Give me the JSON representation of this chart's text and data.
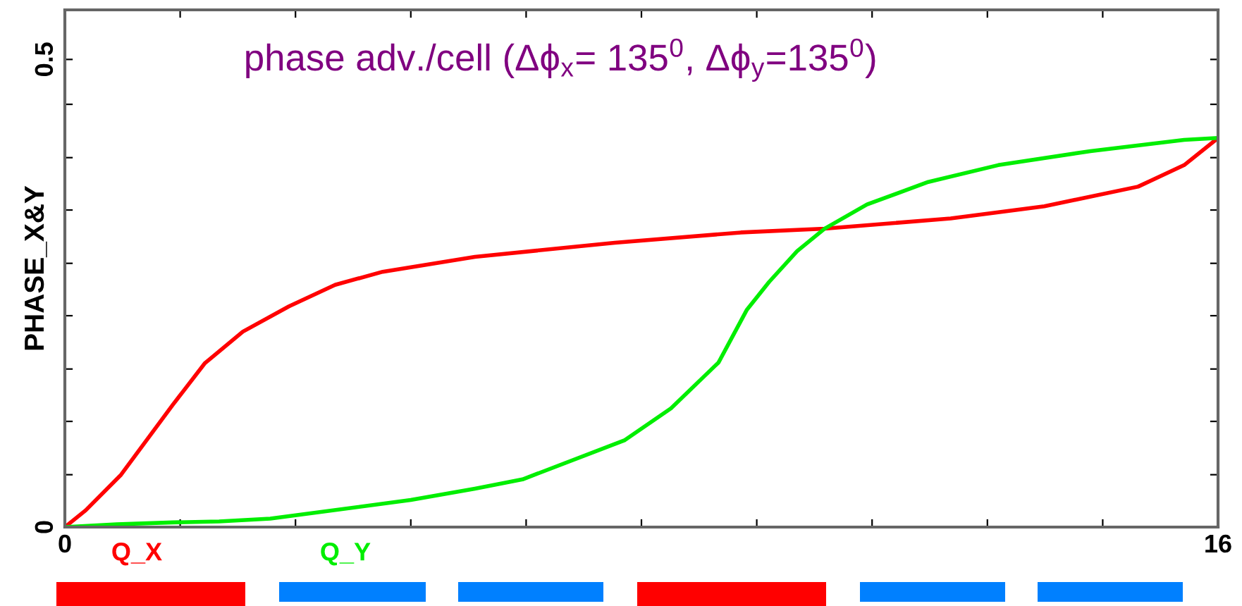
{
  "chart_data": {
    "type": "line",
    "title": "phase adv./cell (Δϕ$_{x}$= 135$^{0}$, Δϕ$_{y}$=135$^{0}$)",
    "ylabel": "PHASE_X&Y",
    "xlim": [
      0,
      16
    ],
    "ylim": [
      0,
      0.553
    ],
    "xticks": [
      0,
      {
        "value": 1.6,
        "label": null
      },
      {
        "value": 3.2,
        "label": null
      },
      {
        "value": 4.8,
        "label": null
      },
      {
        "value": 6.4,
        "label": null
      },
      {
        "value": 8,
        "label": null
      },
      {
        "value": 9.6,
        "label": null
      },
      {
        "value": 11.2,
        "label": null
      },
      {
        "value": 12.8,
        "label": null
      },
      {
        "value": 14.4,
        "label": null
      },
      16
    ],
    "yticks": [
      0,
      {
        "value": 0.056,
        "label": null
      },
      {
        "value": 0.113,
        "label": null
      },
      {
        "value": 0.169,
        "label": null
      },
      {
        "value": 0.226,
        "label": null
      },
      {
        "value": 0.282,
        "label": null
      },
      {
        "value": 0.339,
        "label": null
      },
      {
        "value": 0.395,
        "label": null
      },
      {
        "value": 0.452,
        "label": null
      },
      0.5
    ],
    "grid": false,
    "legend": false,
    "series": [
      {
        "name": "Q_X",
        "color": "#ff0000",
        "x": [
          0,
          0.29,
          0.78,
          1.5,
          1.94,
          2.47,
          3.11,
          3.75,
          4.41,
          5.69,
          7.63,
          9.38,
          10.54,
          12.29,
          13.59,
          14.89,
          15.53,
          16
        ],
        "values": [
          0,
          0.018,
          0.056,
          0.131,
          0.175,
          0.209,
          0.236,
          0.259,
          0.273,
          0.289,
          0.304,
          0.315,
          0.319,
          0.33,
          0.343,
          0.364,
          0.387,
          0.416
        ]
      },
      {
        "name": "Q_Y",
        "color": "#00ee00",
        "x": [
          0,
          0.72,
          1.5,
          2.14,
          2.85,
          4.8,
          5.69,
          6.35,
          7.77,
          8.41,
          9.07,
          9.46,
          9.77,
          10.16,
          10.54,
          11.13,
          11.98,
          12.95,
          14.23,
          15.53,
          16
        ],
        "values": [
          0,
          0.003,
          0.005,
          0.006,
          0.009,
          0.029,
          0.041,
          0.051,
          0.093,
          0.127,
          0.176,
          0.232,
          0.262,
          0.295,
          0.319,
          0.345,
          0.369,
          0.387,
          0.402,
          0.414,
          0.416
        ]
      }
    ]
  }
}
